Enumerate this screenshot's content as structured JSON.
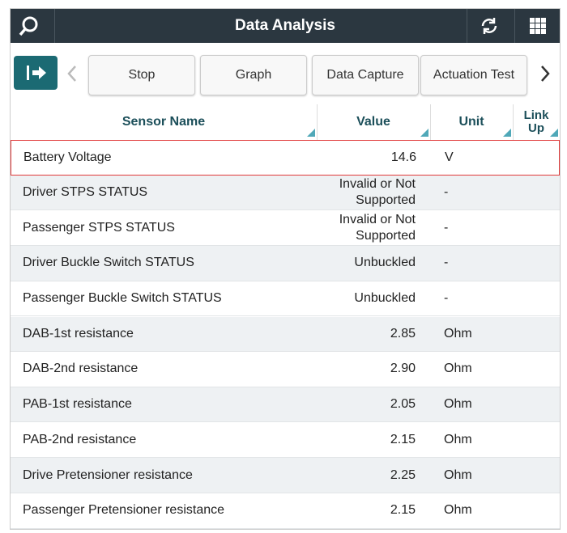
{
  "header": {
    "title": "Data Analysis"
  },
  "toolbar": {
    "buttons": [
      "Stop",
      "Graph",
      "Data Capture",
      "Actuation Test"
    ]
  },
  "table": {
    "columns": [
      "Sensor Name",
      "Value",
      "Unit",
      "Link Up"
    ],
    "rows": [
      [
        "Battery Voltage",
        "14.6",
        "V"
      ],
      [
        "Driver STPS STATUS",
        "Invalid or Not Supported",
        "-"
      ],
      [
        "Passenger STPS STATUS",
        "Invalid or Not Supported",
        "-"
      ],
      [
        "Driver Buckle Switch STATUS",
        "Unbuckled",
        "-"
      ],
      [
        "Passenger Buckle Switch STATUS",
        "Unbuckled",
        "-"
      ],
      [
        "DAB-1st resistance",
        "2.85",
        "Ohm"
      ],
      [
        "DAB-2nd resistance",
        "2.90",
        "Ohm"
      ],
      [
        "PAB-1st resistance",
        "2.05",
        "Ohm"
      ],
      [
        "PAB-2nd resistance",
        "2.15",
        "Ohm"
      ],
      [
        "Drive Pretensioner resistance",
        "2.25",
        "Ohm"
      ],
      [
        "Passenger Pretensioner resistance",
        "2.15",
        "Ohm"
      ]
    ]
  }
}
